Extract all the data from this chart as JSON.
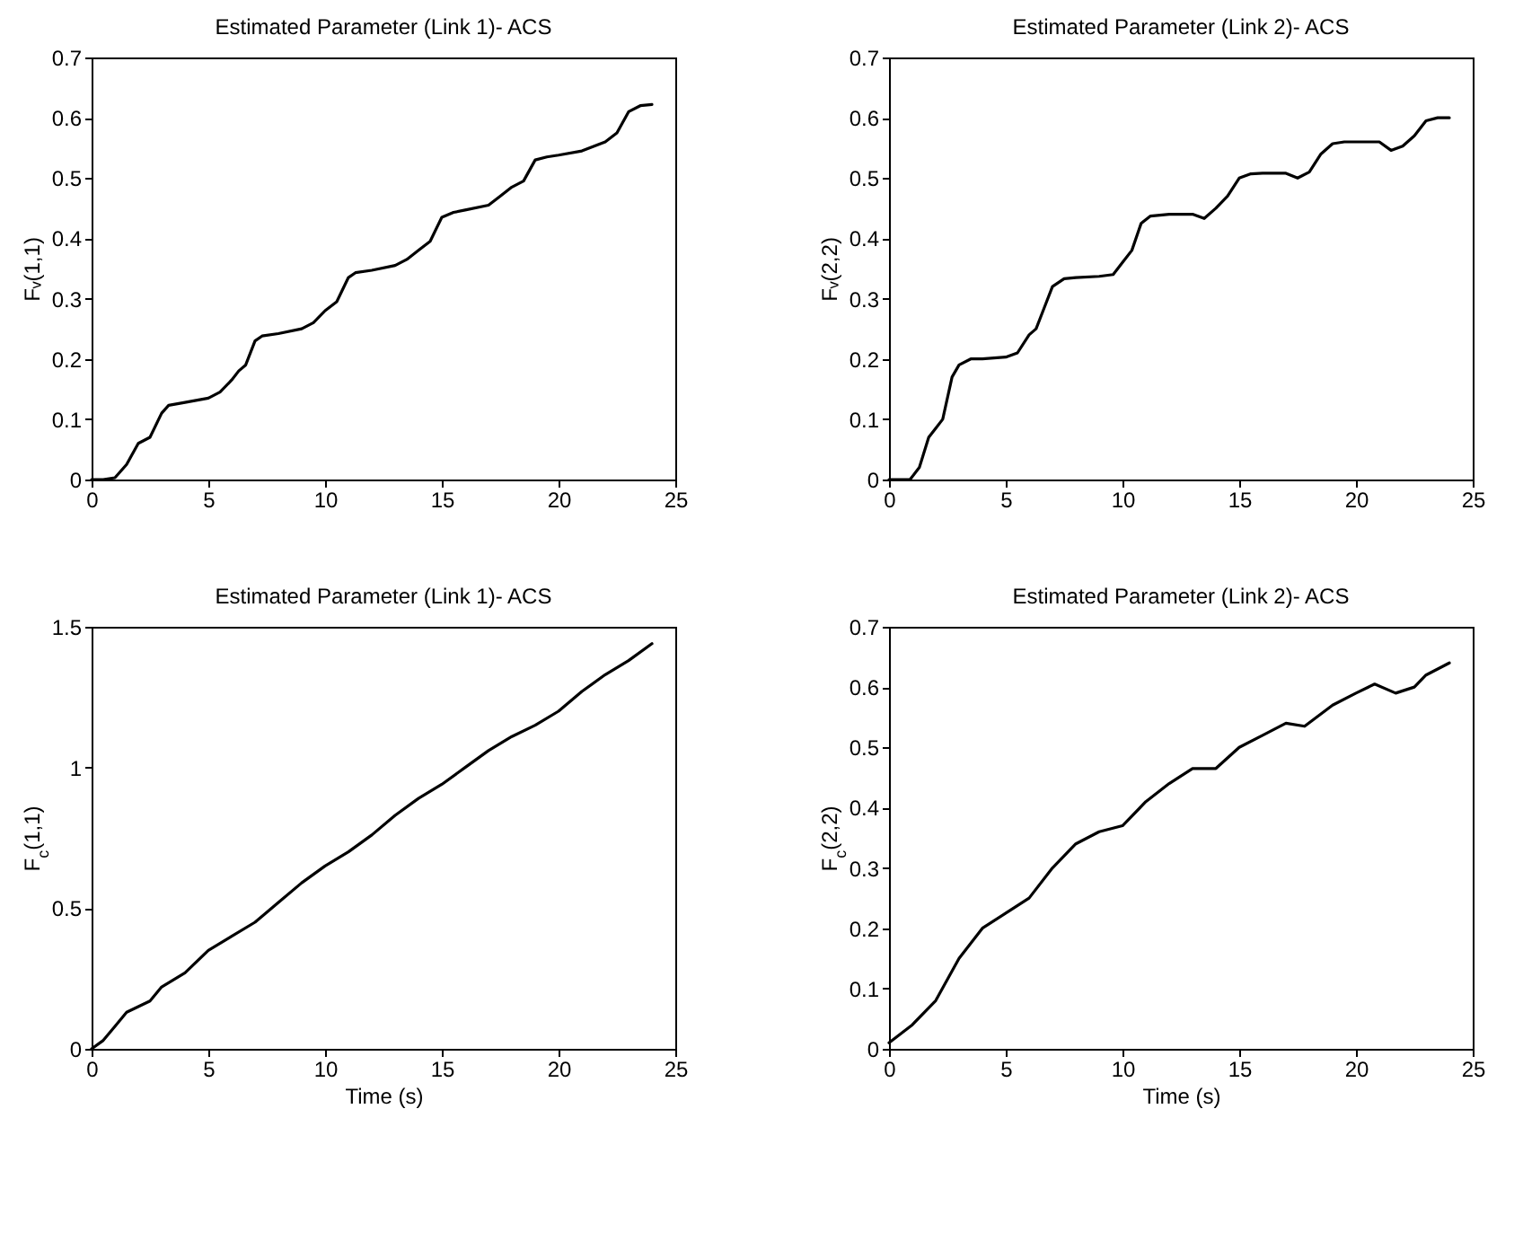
{
  "chart_data": [
    {
      "type": "line",
      "title": "Estimated Parameter (Link 1)- ACS",
      "ylabel": "Fᵥ(1,1)",
      "xlim": [
        0,
        25
      ],
      "xticks": [
        0,
        5,
        10,
        15,
        20,
        25
      ],
      "ylim": [
        0,
        0.7
      ],
      "yticks": [
        0,
        0.1,
        0.2,
        0.3,
        0.4,
        0.5,
        0.6,
        0.7
      ],
      "grid": false,
      "series": [
        {
          "color": "#000000",
          "x": [
            0,
            0.5,
            1,
            1.5,
            2,
            2.5,
            3,
            3.3,
            4,
            5,
            5.5,
            6,
            6.3,
            6.6,
            7,
            7.3,
            8,
            9,
            9.5,
            10,
            10.5,
            11,
            11.3,
            12,
            13,
            13.5,
            14,
            14.5,
            15,
            15.5,
            16,
            17,
            17.5,
            18,
            18.5,
            19,
            19.5,
            20,
            21,
            22,
            22.5,
            23,
            23.5,
            24
          ],
          "values": [
            0,
            0,
            0.003,
            0.025,
            0.06,
            0.07,
            0.11,
            0.123,
            0.128,
            0.135,
            0.145,
            0.165,
            0.18,
            0.19,
            0.23,
            0.238,
            0.242,
            0.25,
            0.26,
            0.28,
            0.295,
            0.335,
            0.343,
            0.347,
            0.355,
            0.365,
            0.38,
            0.395,
            0.435,
            0.443,
            0.447,
            0.455,
            0.47,
            0.485,
            0.495,
            0.53,
            0.535,
            0.538,
            0.545,
            0.56,
            0.575,
            0.61,
            0.62,
            0.622
          ]
        }
      ]
    },
    {
      "type": "line",
      "title": "Estimated Parameter (Link 2)- ACS",
      "ylabel": "Fᵥ(2,2)",
      "xlim": [
        0,
        25
      ],
      "xticks": [
        0,
        5,
        10,
        15,
        20,
        25
      ],
      "ylim": [
        0,
        0.7
      ],
      "yticks": [
        0,
        0.1,
        0.2,
        0.3,
        0.4,
        0.5,
        0.6,
        0.7
      ],
      "grid": false,
      "series": [
        {
          "color": "#000000",
          "x": [
            0,
            0.9,
            1.3,
            1.7,
            2,
            2.3,
            2.7,
            3,
            3.5,
            4,
            5,
            5.5,
            6,
            6.3,
            6.6,
            7,
            7.5,
            8,
            9,
            9.6,
            10,
            10.4,
            10.8,
            11.2,
            12,
            13,
            13.5,
            14,
            14.5,
            15,
            15.5,
            16,
            17,
            17.5,
            18,
            18.5,
            19,
            19.5,
            20,
            21,
            21.5,
            22,
            22.5,
            23,
            23.5,
            24
          ],
          "values": [
            0,
            0,
            0.02,
            0.07,
            0.085,
            0.1,
            0.17,
            0.19,
            0.2,
            0.2,
            0.203,
            0.21,
            0.24,
            0.25,
            0.28,
            0.32,
            0.333,
            0.335,
            0.337,
            0.34,
            0.36,
            0.38,
            0.425,
            0.437,
            0.44,
            0.44,
            0.433,
            0.45,
            0.47,
            0.5,
            0.507,
            0.508,
            0.508,
            0.5,
            0.51,
            0.54,
            0.557,
            0.56,
            0.56,
            0.56,
            0.546,
            0.553,
            0.57,
            0.595,
            0.6,
            0.6
          ]
        }
      ]
    },
    {
      "type": "line",
      "title": "Estimated Parameter (Link 1)- ACS",
      "xlabel": "Time (s)",
      "ylabel": "F$_{c}$(1,1)",
      "xlim": [
        0,
        25
      ],
      "xticks": [
        0,
        5,
        10,
        15,
        20,
        25
      ],
      "ylim": [
        0,
        1.5
      ],
      "yticks": [
        0,
        0.5,
        1,
        1.5
      ],
      "grid": false,
      "series": [
        {
          "color": "#000000",
          "x": [
            0,
            0.5,
            1,
            1.5,
            2,
            2.5,
            3,
            4,
            5,
            6,
            7,
            8,
            9,
            10,
            11,
            12,
            13,
            14,
            15,
            16,
            17,
            18,
            19,
            20,
            21,
            22,
            23,
            24
          ],
          "values": [
            0,
            0.03,
            0.08,
            0.13,
            0.15,
            0.17,
            0.22,
            0.27,
            0.35,
            0.4,
            0.45,
            0.52,
            0.59,
            0.65,
            0.7,
            0.76,
            0.83,
            0.89,
            0.94,
            1.0,
            1.06,
            1.11,
            1.15,
            1.2,
            1.27,
            1.33,
            1.38,
            1.44
          ]
        }
      ]
    },
    {
      "type": "line",
      "title": "Estimated Parameter (Link 2)- ACS",
      "xlabel": "Time (s)",
      "ylabel": "F$_{c}$(2,2)",
      "xlim": [
        0,
        25
      ],
      "xticks": [
        0,
        5,
        10,
        15,
        20,
        25
      ],
      "ylim": [
        0,
        0.7
      ],
      "yticks": [
        0,
        0.1,
        0.2,
        0.3,
        0.4,
        0.5,
        0.6,
        0.7
      ],
      "grid": false,
      "series": [
        {
          "color": "#000000",
          "x": [
            0,
            1,
            2,
            3,
            4,
            5,
            6,
            7,
            8,
            9,
            10,
            11,
            12,
            13,
            14,
            15,
            16,
            17,
            17.8,
            19,
            20,
            20.8,
            21.7,
            22.5,
            23,
            24
          ],
          "values": [
            0.01,
            0.04,
            0.08,
            0.15,
            0.2,
            0.225,
            0.25,
            0.3,
            0.34,
            0.36,
            0.37,
            0.41,
            0.44,
            0.465,
            0.465,
            0.5,
            0.52,
            0.54,
            0.535,
            0.57,
            0.59,
            0.605,
            0.59,
            0.6,
            0.62,
            0.64
          ]
        }
      ]
    }
  ]
}
